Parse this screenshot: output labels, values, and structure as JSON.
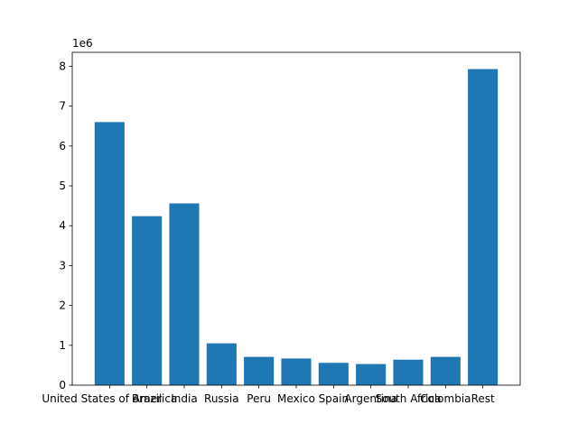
{
  "chart_data": {
    "type": "bar",
    "categories": [
      "United States of America",
      "Brazil",
      "India",
      "Russia",
      "Peru",
      "Mexico",
      "Spain",
      "Argentina",
      "South Africa",
      "Colombia",
      "Rest"
    ],
    "values": [
      6600000,
      4240000,
      4560000,
      1050000,
      710000,
      670000,
      560000,
      530000,
      640000,
      710000,
      7930000
    ],
    "y_tick_labels": [
      "0",
      "1",
      "2",
      "3",
      "4",
      "5",
      "6",
      "7",
      "8"
    ],
    "y_scale_label": "1e6",
    "ylim": [
      0,
      8350000
    ],
    "bar_color": "#1f77b4",
    "grid": false,
    "title": "",
    "xlabel": "",
    "ylabel": ""
  }
}
